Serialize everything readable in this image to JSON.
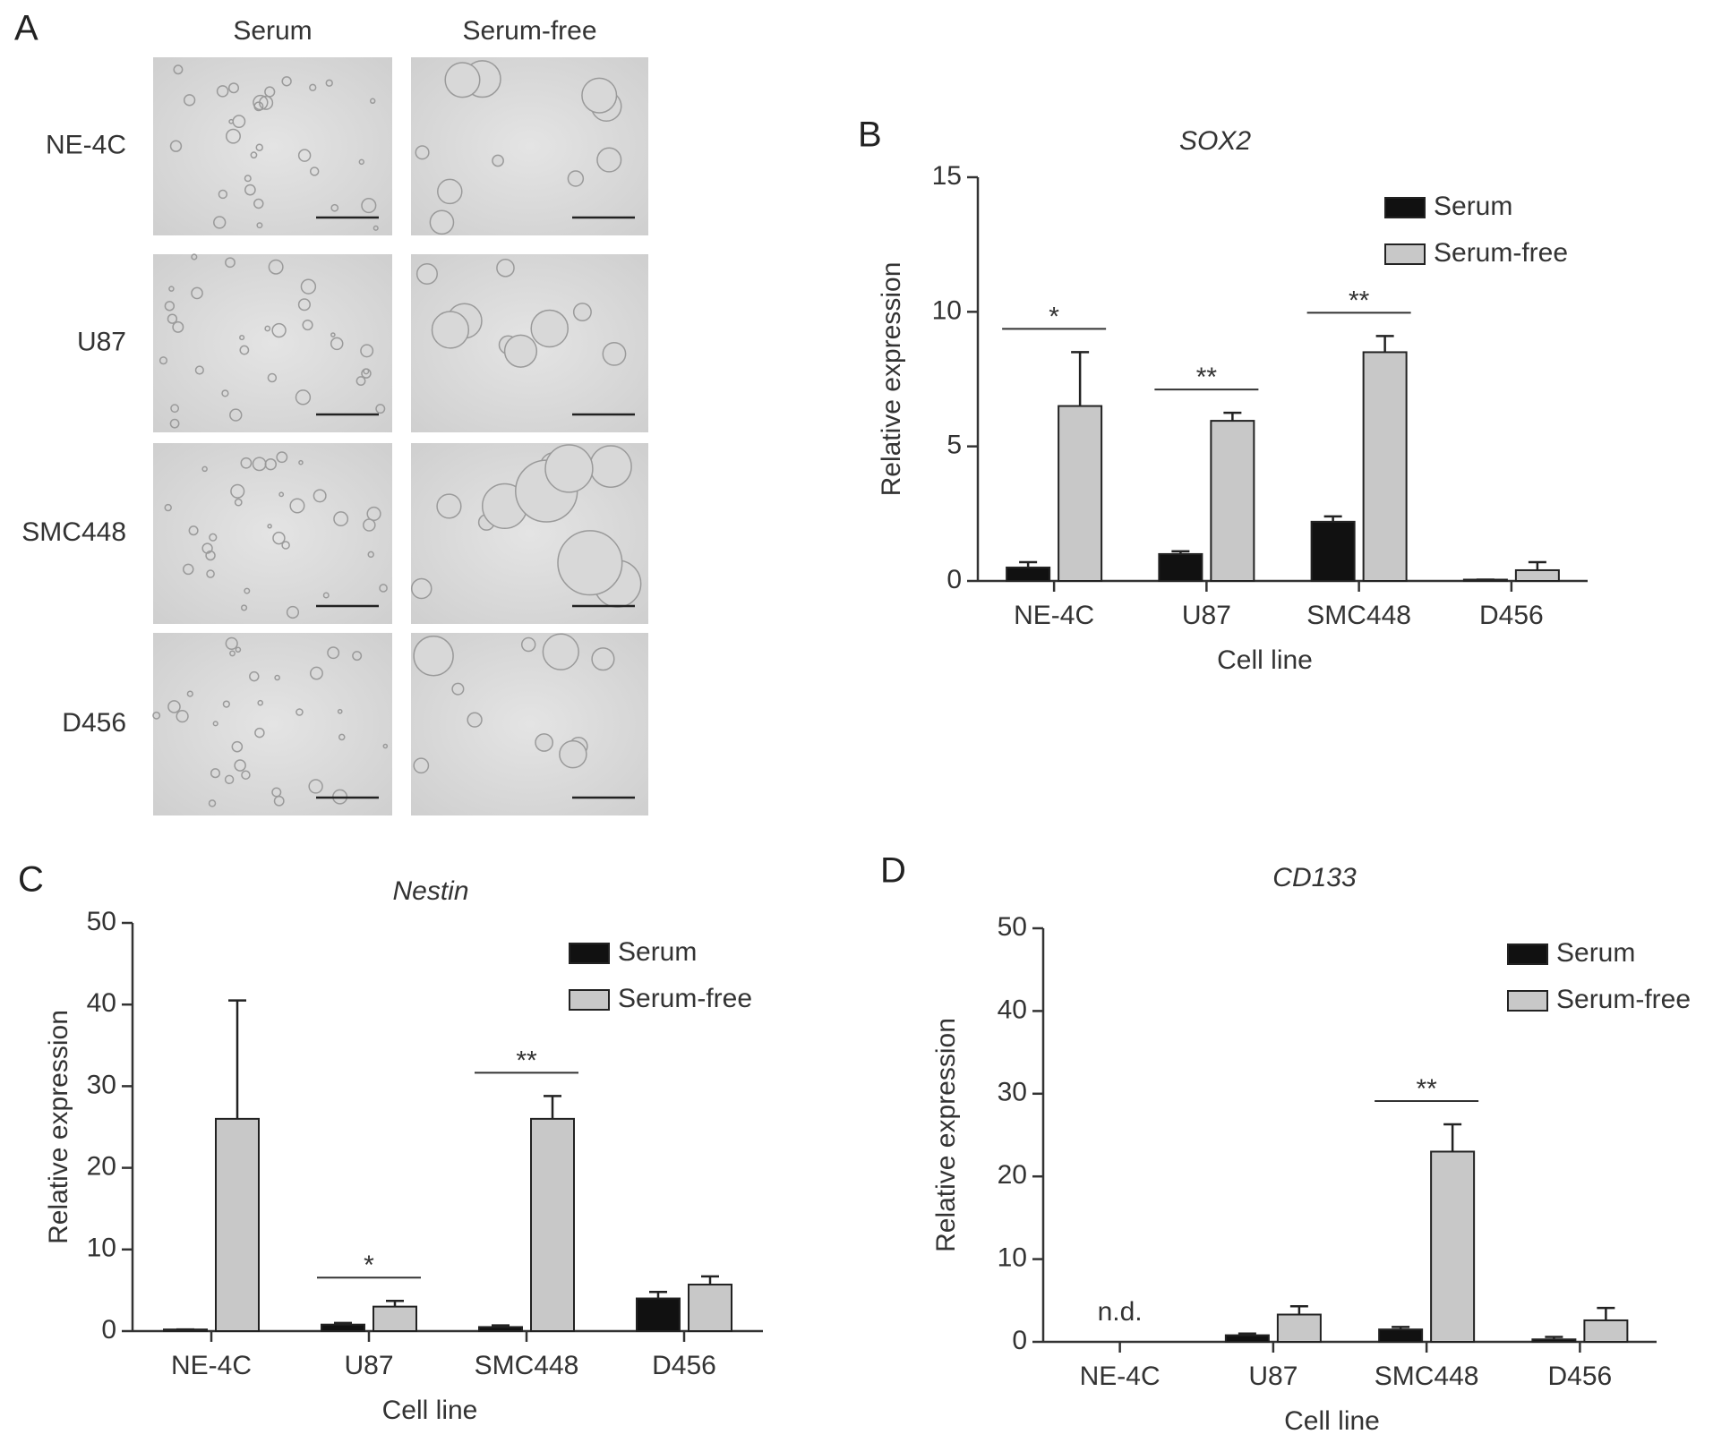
{
  "panel_a": {
    "label": "A",
    "columns": [
      "Serum",
      "Serum-free"
    ],
    "rows": [
      "NE-4C",
      "U87",
      "SMC448",
      "D456"
    ]
  },
  "chart_data": [
    {
      "type": "bar",
      "panel_label": "B",
      "title": "SOX2",
      "x_label": "Cell line",
      "y_label": "Relative expression",
      "categories": [
        "NE-4C",
        "U87",
        "SMC448",
        "D456"
      ],
      "series": [
        {
          "name": "Serum",
          "color": "#111111",
          "values": [
            0.5,
            1.0,
            2.2,
            0.05
          ],
          "errors": [
            0.2,
            0.1,
            0.2,
            0
          ]
        },
        {
          "name": "Serum-free",
          "color": "#c8c8c8",
          "values": [
            6.5,
            5.95,
            8.5,
            0.4
          ],
          "errors": [
            2.0,
            0.3,
            0.6,
            0.3
          ]
        }
      ],
      "significance": [
        "*",
        "**",
        "**",
        null
      ],
      "category_notes": [
        null,
        null,
        null,
        null
      ],
      "ylim": [
        0,
        15
      ],
      "yticks": [
        0,
        5,
        10,
        15
      ],
      "legend_position": "upper right"
    },
    {
      "type": "bar",
      "panel_label": "C",
      "title": "Nestin",
      "x_label": "Cell line",
      "y_label": "Relative expression",
      "categories": [
        "NE-4C",
        "U87",
        "SMC448",
        "D456"
      ],
      "series": [
        {
          "name": "Serum",
          "color": "#111111",
          "values": [
            0.2,
            0.8,
            0.5,
            4.0
          ],
          "errors": [
            0,
            0.2,
            0.2,
            0.8
          ]
        },
        {
          "name": "Serum-free",
          "color": "#c8c8c8",
          "values": [
            26,
            3.0,
            26,
            5.7
          ],
          "errors": [
            14.5,
            0.7,
            2.8,
            1.0
          ]
        }
      ],
      "significance": [
        null,
        "*",
        "**",
        null
      ],
      "category_notes": [
        null,
        null,
        null,
        null
      ],
      "ylim": [
        0,
        50
      ],
      "yticks": [
        0,
        10,
        20,
        30,
        40,
        50
      ],
      "legend_position": "upper right"
    },
    {
      "type": "bar",
      "panel_label": "D",
      "title": "CD133",
      "x_label": "Cell line",
      "y_label": "Relative expression",
      "categories": [
        "NE-4C",
        "U87",
        "SMC448",
        "D456"
      ],
      "series": [
        {
          "name": "Serum",
          "color": "#111111",
          "values": [
            null,
            0.8,
            1.5,
            0.3
          ],
          "errors": [
            null,
            0.2,
            0.3,
            0.3
          ]
        },
        {
          "name": "Serum-free",
          "color": "#c8c8c8",
          "values": [
            null,
            3.3,
            23,
            2.6
          ],
          "errors": [
            null,
            1.0,
            3.3,
            1.5
          ]
        }
      ],
      "significance": [
        null,
        null,
        "**",
        null
      ],
      "category_notes": [
        "n.d.",
        null,
        null,
        null
      ],
      "ylim": [
        0,
        50
      ],
      "yticks": [
        0,
        10,
        20,
        30,
        40,
        50
      ],
      "legend_position": "upper right"
    }
  ]
}
